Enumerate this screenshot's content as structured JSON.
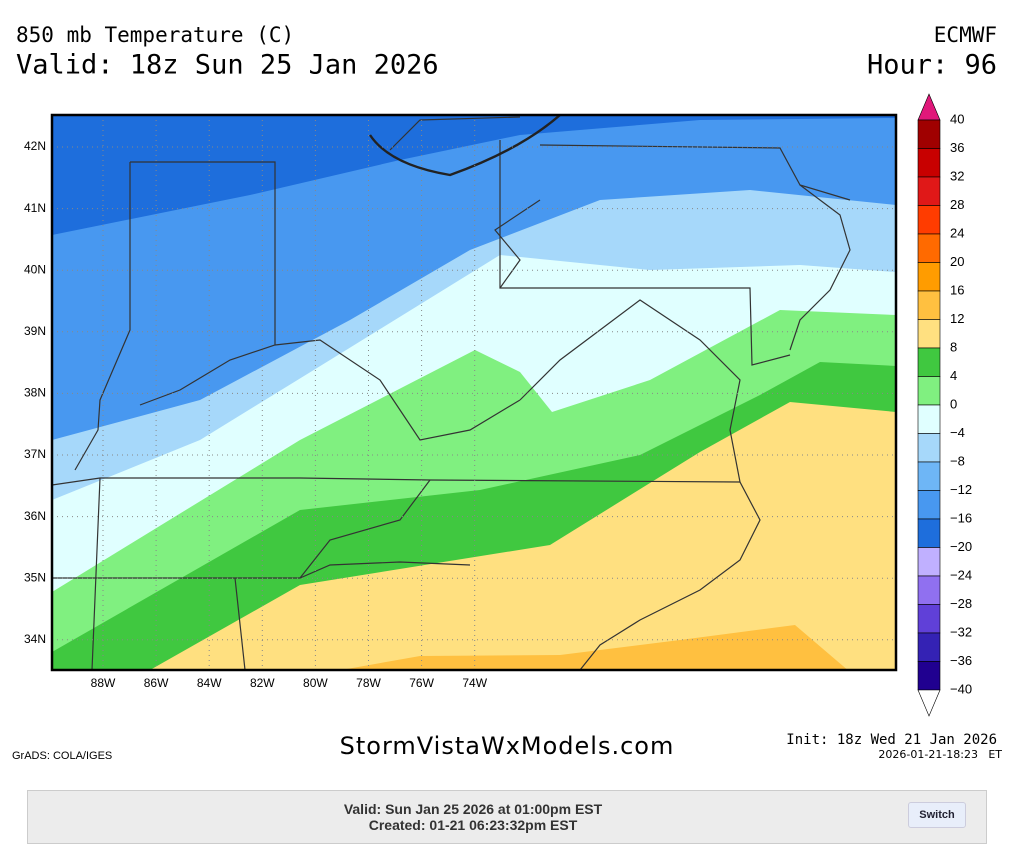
{
  "header": {
    "title": "850 mb Temperature (C)",
    "valid": "Valid: 18z Sun 25 Jan 2026",
    "model": "ECMWF",
    "hour": "Hour: 96"
  },
  "map": {
    "lat_labels": [
      "42N",
      "41N",
      "40N",
      "39N",
      "38N",
      "37N",
      "36N",
      "35N",
      "34N"
    ],
    "lon_labels": [
      "88W",
      "86W",
      "84W",
      "82W",
      "80W",
      "78W",
      "76W",
      "74W"
    ]
  },
  "colorbar": {
    "labels": [
      "40",
      "36",
      "32",
      "28",
      "24",
      "20",
      "16",
      "12",
      "8",
      "4",
      "0",
      "−4",
      "−8",
      "−12",
      "−16",
      "−20",
      "−24",
      "−28",
      "−32",
      "−36",
      "−40"
    ],
    "colors": [
      "#a00000",
      "#c80000",
      "#e01818",
      "#ff3c00",
      "#ff6a00",
      "#ff9c00",
      "#ffc040",
      "#ffe080",
      "#40c840",
      "#80f080",
      "#e0ffff",
      "#a6d8fa",
      "#6eb6f6",
      "#4898f0",
      "#1e6edc",
      "#c0b0ff",
      "#9070f0",
      "#6040d8",
      "#3422b4",
      "#200090"
    ],
    "top_color": "#e0187a",
    "bottom_color": "#ffffff"
  },
  "footer": {
    "grads": "GrADS: COLA/IGES",
    "site": "StormVistaWxModels.com",
    "init": "Init: 18z Wed 21 Jan 2026",
    "stamp": "2026-01-21-18:23",
    "tz": "ET"
  },
  "panel": {
    "valid": "Valid: Sun Jan 25 2026 at 01:00pm EST",
    "created": "Created: 01-21 06:23:32pm EST",
    "button": "Switch"
  }
}
